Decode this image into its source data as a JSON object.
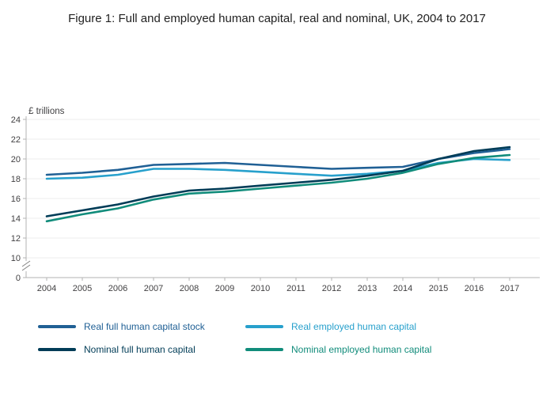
{
  "title": "Figure 1: Full and employed human capital, real and nominal, UK, 2004 to 2017",
  "chart_data": {
    "type": "line",
    "title": "Figure 1: Full and employed human capital, real and nominal, UK, 2004 to 2017",
    "unit_label": "£ trillions",
    "x": [
      2004,
      2005,
      2006,
      2007,
      2008,
      2009,
      2010,
      2011,
      2012,
      2013,
      2014,
      2015,
      2016,
      2017
    ],
    "ylim": [
      10,
      24
    ],
    "yticks": [
      24,
      22,
      20,
      18,
      16,
      14,
      12,
      10,
      0
    ],
    "axis_break": true,
    "axis_break_between": [
      0,
      10
    ],
    "grid": true,
    "legend_position": "bottom",
    "series": [
      {
        "name": "Real full human capital stock",
        "color": "#206095",
        "values": [
          18.4,
          18.6,
          18.9,
          19.4,
          19.5,
          19.6,
          19.4,
          19.2,
          19.0,
          19.1,
          19.2,
          20.0,
          20.6,
          21.0
        ]
      },
      {
        "name": "Real employed human capital",
        "color": "#27a0cc",
        "values": [
          18.0,
          18.1,
          18.4,
          19.0,
          19.0,
          18.9,
          18.7,
          18.5,
          18.3,
          18.5,
          18.8,
          19.6,
          20.0,
          19.9
        ]
      },
      {
        "name": "Nominal full human capital",
        "color": "#003c57",
        "values": [
          14.2,
          14.8,
          15.4,
          16.2,
          16.8,
          17.0,
          17.3,
          17.6,
          17.9,
          18.3,
          18.8,
          20.0,
          20.8,
          21.2
        ]
      },
      {
        "name": "Nominal employed human capital",
        "color": "#118c7b",
        "values": [
          13.7,
          14.4,
          15.0,
          15.9,
          16.5,
          16.7,
          17.0,
          17.3,
          17.6,
          18.0,
          18.6,
          19.5,
          20.1,
          20.4
        ]
      }
    ],
    "colors": {
      "axis": "#b3b3b3",
      "grid": "#ececec",
      "tick_text": "#414042"
    }
  }
}
